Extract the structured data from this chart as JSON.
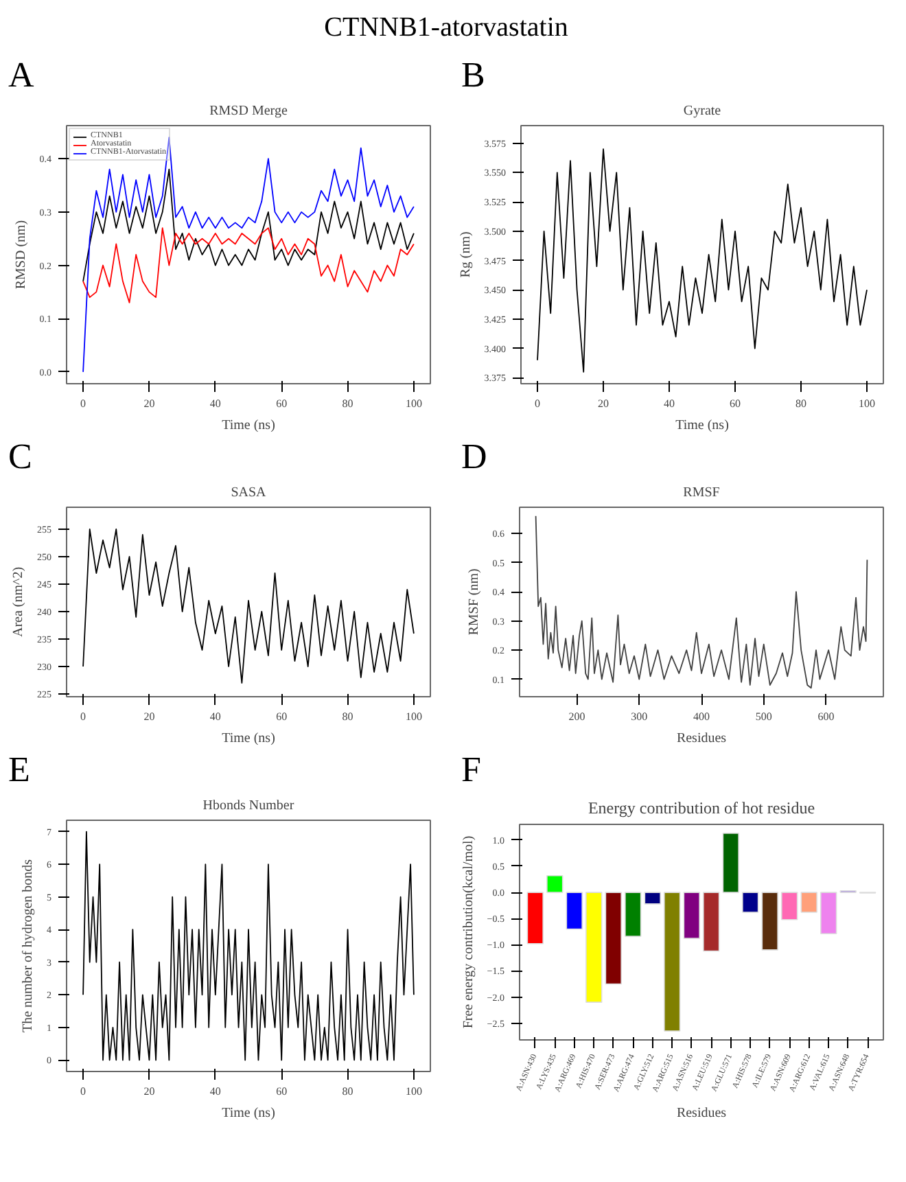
{
  "chart_data": [
    {
      "type": "line",
      "title": "RMSD Merge",
      "xlabel": "Time (ns)",
      "ylabel": "RMSD (nm)",
      "annotations": [
        "CTNNB1-atorvastatin",
        "A"
      ],
      "legend": "top left",
      "grid": false,
      "x": [
        0,
        2,
        4,
        6,
        8,
        10,
        12,
        14,
        16,
        18,
        20,
        22,
        24,
        26,
        28,
        30,
        32,
        34,
        36,
        38,
        40,
        42,
        44,
        46,
        48,
        50,
        52,
        54,
        56,
        58,
        60,
        62,
        64,
        66,
        68,
        70,
        72,
        74,
        76,
        78,
        80,
        82,
        84,
        86,
        88,
        90,
        92,
        94,
        96,
        98,
        100
      ],
      "xlim": [
        -5,
        105
      ],
      "xticks": [
        0,
        20,
        40,
        60,
        80,
        100
      ],
      "ylim": [
        -0.022,
        0.462
      ],
      "yticks": [
        {
          "value": 0,
          "label": "0.0"
        },
        0.1,
        0.2,
        0.3,
        0.4
      ],
      "series": [
        {
          "name": "CTNNB1",
          "color": "#000000",
          "values": [
            0.17,
            0.24,
            0.3,
            0.26,
            0.33,
            0.27,
            0.32,
            0.26,
            0.31,
            0.27,
            0.33,
            0.26,
            0.3,
            0.38,
            0.23,
            0.26,
            0.21,
            0.25,
            0.22,
            0.24,
            0.2,
            0.23,
            0.2,
            0.22,
            0.2,
            0.23,
            0.21,
            0.26,
            0.3,
            0.21,
            0.23,
            0.2,
            0.23,
            0.21,
            0.23,
            0.22,
            0.3,
            0.26,
            0.32,
            0.27,
            0.3,
            0.25,
            0.32,
            0.24,
            0.28,
            0.23,
            0.28,
            0.24,
            0.28,
            0.23,
            0.26
          ]
        },
        {
          "name": "Atorvastatin",
          "color": "#ff0000",
          "values": [
            0.17,
            0.14,
            0.15,
            0.2,
            0.16,
            0.24,
            0.17,
            0.13,
            0.22,
            0.17,
            0.15,
            0.14,
            0.27,
            0.2,
            0.26,
            0.24,
            0.26,
            0.24,
            0.25,
            0.24,
            0.26,
            0.24,
            0.25,
            0.24,
            0.26,
            0.25,
            0.24,
            0.26,
            0.27,
            0.23,
            0.25,
            0.22,
            0.24,
            0.22,
            0.25,
            0.24,
            0.18,
            0.2,
            0.17,
            0.22,
            0.16,
            0.19,
            0.17,
            0.15,
            0.19,
            0.17,
            0.2,
            0.18,
            0.23,
            0.22,
            0.24
          ]
        },
        {
          "name": "CTNNB1-Atorvastatin",
          "color": "#0000ff",
          "values": [
            0.0,
            0.25,
            0.34,
            0.29,
            0.38,
            0.3,
            0.37,
            0.29,
            0.36,
            0.3,
            0.37,
            0.29,
            0.33,
            0.44,
            0.29,
            0.31,
            0.27,
            0.3,
            0.27,
            0.29,
            0.27,
            0.29,
            0.27,
            0.28,
            0.27,
            0.29,
            0.28,
            0.32,
            0.4,
            0.3,
            0.28,
            0.3,
            0.28,
            0.3,
            0.29,
            0.3,
            0.34,
            0.32,
            0.38,
            0.33,
            0.36,
            0.32,
            0.42,
            0.33,
            0.36,
            0.31,
            0.35,
            0.3,
            0.33,
            0.29,
            0.31
          ]
        }
      ]
    },
    {
      "type": "line",
      "title": "Gyrate",
      "xlabel": "Time (ns)",
      "ylabel": "Rg (nm)",
      "annotations": [
        "B"
      ],
      "grid": false,
      "x": [
        0,
        2,
        4,
        6,
        8,
        10,
        12,
        14,
        16,
        18,
        20,
        22,
        24,
        26,
        28,
        30,
        32,
        34,
        36,
        38,
        40,
        42,
        44,
        46,
        48,
        50,
        52,
        54,
        56,
        58,
        60,
        62,
        64,
        66,
        68,
        70,
        72,
        74,
        76,
        78,
        80,
        82,
        84,
        86,
        88,
        90,
        92,
        94,
        96,
        98,
        100
      ],
      "xlim": [
        -5,
        105
      ],
      "xticks": [
        0,
        20,
        40,
        60,
        80,
        100
      ],
      "ylim": [
        3.37,
        3.59
      ],
      "yticks": [
        3.375,
        {
          "value": 3.4,
          "label": "3.400"
        },
        3.425,
        {
          "value": 3.45,
          "label": "3.450"
        },
        3.475,
        {
          "value": 3.5,
          "label": "3.500"
        },
        3.525,
        {
          "value": 3.55,
          "label": "3.550"
        },
        3.575
      ],
      "series": [
        {
          "color": "#000000",
          "values": [
            3.39,
            3.5,
            3.43,
            3.55,
            3.46,
            3.56,
            3.45,
            3.38,
            3.55,
            3.47,
            3.57,
            3.5,
            3.55,
            3.45,
            3.52,
            3.42,
            3.5,
            3.43,
            3.49,
            3.42,
            3.44,
            3.41,
            3.47,
            3.42,
            3.46,
            3.43,
            3.48,
            3.44,
            3.51,
            3.45,
            3.5,
            3.44,
            3.47,
            3.4,
            3.46,
            3.45,
            3.5,
            3.49,
            3.54,
            3.49,
            3.52,
            3.47,
            3.5,
            3.45,
            3.51,
            3.44,
            3.48,
            3.42,
            3.47,
            3.42,
            3.45
          ]
        }
      ]
    },
    {
      "type": "line",
      "title": "SASA",
      "xlabel": "Time (ns)",
      "ylabel": "Area (nm^2)",
      "annotations": [
        "C"
      ],
      "grid": false,
      "x": [
        0,
        2,
        4,
        6,
        8,
        10,
        12,
        14,
        16,
        18,
        20,
        22,
        24,
        26,
        28,
        30,
        32,
        34,
        36,
        38,
        40,
        42,
        44,
        46,
        48,
        50,
        52,
        54,
        56,
        58,
        60,
        62,
        64,
        66,
        68,
        70,
        72,
        74,
        76,
        78,
        80,
        82,
        84,
        86,
        88,
        90,
        92,
        94,
        96,
        98,
        100
      ],
      "xlim": [
        -5,
        105
      ],
      "xticks": [
        0,
        20,
        40,
        60,
        80,
        100
      ],
      "ylim": [
        224.5,
        259
      ],
      "yticks": [
        225,
        230,
        235,
        240,
        245,
        250,
        255
      ],
      "series": [
        {
          "color": "#000000",
          "values": [
            230,
            255,
            247,
            253,
            248,
            255,
            244,
            250,
            239,
            254,
            243,
            249,
            241,
            247,
            252,
            240,
            248,
            238,
            233,
            242,
            236,
            241,
            230,
            239,
            227,
            242,
            233,
            240,
            232,
            247,
            233,
            242,
            231,
            238,
            230,
            243,
            232,
            241,
            233,
            242,
            231,
            240,
            228,
            238,
            229,
            236,
            229,
            238,
            231,
            244,
            236
          ]
        }
      ]
    },
    {
      "type": "line",
      "title": "RMSF",
      "xlabel": "Residues",
      "ylabel": "RMSF (nm)",
      "annotations": [
        "D"
      ],
      "grid": false,
      "x": [
        134,
        138,
        142,
        146,
        150,
        154,
        158,
        162,
        166,
        170,
        176,
        182,
        188,
        194,
        198,
        204,
        208,
        214,
        218,
        224,
        228,
        234,
        240,
        248,
        258,
        266,
        270,
        276,
        284,
        292,
        300,
        310,
        318,
        330,
        340,
        352,
        364,
        376,
        384,
        392,
        400,
        412,
        420,
        432,
        444,
        456,
        464,
        472,
        478,
        486,
        492,
        500,
        510,
        520,
        530,
        538,
        546,
        552,
        560,
        570,
        576,
        584,
        590,
        604,
        614,
        624,
        630,
        640,
        648,
        654,
        660,
        664,
        666
      ],
      "xlim": [
        108,
        692
      ],
      "xticks": [
        200,
        300,
        400,
        500,
        600
      ],
      "ylim": [
        0.04,
        0.69
      ],
      "yticks": [
        0.1,
        0.2,
        0.3,
        0.4,
        0.5,
        0.6
      ],
      "series": [
        {
          "color": "#404040",
          "values": [
            0.66,
            0.35,
            0.38,
            0.22,
            0.36,
            0.17,
            0.26,
            0.19,
            0.35,
            0.2,
            0.14,
            0.24,
            0.13,
            0.25,
            0.12,
            0.25,
            0.3,
            0.12,
            0.1,
            0.31,
            0.12,
            0.2,
            0.1,
            0.19,
            0.09,
            0.32,
            0.15,
            0.22,
            0.12,
            0.18,
            0.1,
            0.22,
            0.11,
            0.2,
            0.1,
            0.18,
            0.12,
            0.2,
            0.13,
            0.26,
            0.12,
            0.22,
            0.11,
            0.2,
            0.1,
            0.31,
            0.09,
            0.22,
            0.08,
            0.24,
            0.11,
            0.22,
            0.08,
            0.12,
            0.19,
            0.11,
            0.19,
            0.4,
            0.2,
            0.08,
            0.07,
            0.2,
            0.1,
            0.2,
            0.1,
            0.28,
            0.2,
            0.18,
            0.38,
            0.2,
            0.28,
            0.23,
            0.51
          ]
        }
      ]
    },
    {
      "type": "line",
      "title": "Hbonds Number",
      "xlabel": "Time (ns)",
      "ylabel": "The number of hydrogen bonds",
      "annotations": [
        "E"
      ],
      "grid": false,
      "x": [
        0,
        1,
        2,
        3,
        4,
        5,
        6,
        7,
        8,
        9,
        10,
        11,
        12,
        13,
        14,
        15,
        16,
        17,
        18,
        19,
        20,
        21,
        22,
        23,
        24,
        25,
        26,
        27,
        28,
        29,
        30,
        31,
        32,
        33,
        34,
        35,
        36,
        37,
        38,
        39,
        40,
        41,
        42,
        43,
        44,
        45,
        46,
        47,
        48,
        49,
        50,
        51,
        52,
        53,
        54,
        55,
        56,
        57,
        58,
        59,
        60,
        61,
        62,
        63,
        64,
        65,
        66,
        67,
        68,
        69,
        70,
        71,
        72,
        73,
        74,
        75,
        76,
        77,
        78,
        79,
        80,
        81,
        82,
        83,
        84,
        85,
        86,
        87,
        88,
        89,
        90,
        91,
        92,
        93,
        94,
        95,
        96,
        97,
        98,
        99,
        100
      ],
      "xlim": [
        -5,
        105
      ],
      "xticks": [
        0,
        20,
        40,
        60,
        80,
        100
      ],
      "ylim": [
        -0.35,
        7.35
      ],
      "yticks": [
        0,
        1,
        2,
        3,
        4,
        5,
        6,
        7
      ],
      "series": [
        {
          "color": "#000000",
          "values": [
            2,
            7,
            3,
            5,
            3,
            6,
            0,
            2,
            0,
            1,
            0,
            3,
            0,
            2,
            0,
            4,
            1,
            0,
            2,
            1,
            0,
            2,
            0,
            3,
            1,
            2,
            0,
            5,
            1,
            4,
            1,
            5,
            2,
            4,
            1,
            4,
            2,
            6,
            1,
            4,
            2,
            4,
            6,
            1,
            4,
            2,
            4,
            1,
            3,
            0,
            4,
            1,
            3,
            0,
            2,
            1,
            6,
            2,
            1,
            3,
            0,
            4,
            1,
            4,
            2,
            1,
            3,
            0,
            2,
            1,
            0,
            2,
            0,
            1,
            0,
            3,
            1,
            0,
            2,
            0,
            4,
            1,
            0,
            2,
            0,
            3,
            1,
            0,
            2,
            0,
            3,
            1,
            0,
            2,
            0,
            3,
            5,
            2,
            4,
            6,
            2
          ]
        }
      ]
    },
    {
      "type": "bar",
      "title": "Energy contribution of hot residue",
      "xlabel": "Residues",
      "ylabel": "Free energy contribution(kcal/mol)",
      "annotations": [
        "F"
      ],
      "grid": false,
      "categories": [
        "A:ASN:430",
        "A:LYS:435",
        "A:ARG:469",
        "A:HIS:470",
        "A:SER:473",
        "A:ARG:474",
        "A:GLY:512",
        "A:ARG:515",
        "A:ASN:516",
        "A:LEU:519",
        "A:GLU:571",
        "A:HIS:578",
        "A:ILE:579",
        "A:ASN:609",
        "A:ARG:612",
        "A:VAL:615",
        "A:ASN:648",
        "A:TYR:654"
      ],
      "values": [
        -0.98,
        0.32,
        -0.7,
        -2.1,
        -1.75,
        -0.84,
        -0.22,
        -2.65,
        -0.88,
        -1.12,
        1.13,
        -0.38,
        -1.1,
        -0.52,
        -0.38,
        -0.79,
        0.03,
        -0.01
      ],
      "colors": [
        "#ff0000",
        "#00ff00",
        "#0000ff",
        "#ffff00",
        "#800000",
        "#008000",
        "#000080",
        "#808000",
        "#800080",
        "#a52a2a",
        "#006400",
        "#00008b",
        "#5a2d0c",
        "#ff69b4",
        "#ffa07a",
        "#ee82ee",
        "#9370db",
        "#e0ffff"
      ],
      "ylim": [
        -2.82,
        1.3
      ],
      "yticks": [
        {
          "value": -2.5,
          "label": "−2.5"
        },
        {
          "value": -2,
          "label": "−2.0"
        },
        {
          "value": -1.5,
          "label": "−1.5"
        },
        {
          "value": -1,
          "label": "−1.0"
        },
        {
          "value": -0.5,
          "label": "−0.5"
        },
        {
          "value": 0,
          "label": "0.0"
        },
        0.5,
        {
          "value": 1,
          "label": "1.0"
        }
      ]
    }
  ]
}
